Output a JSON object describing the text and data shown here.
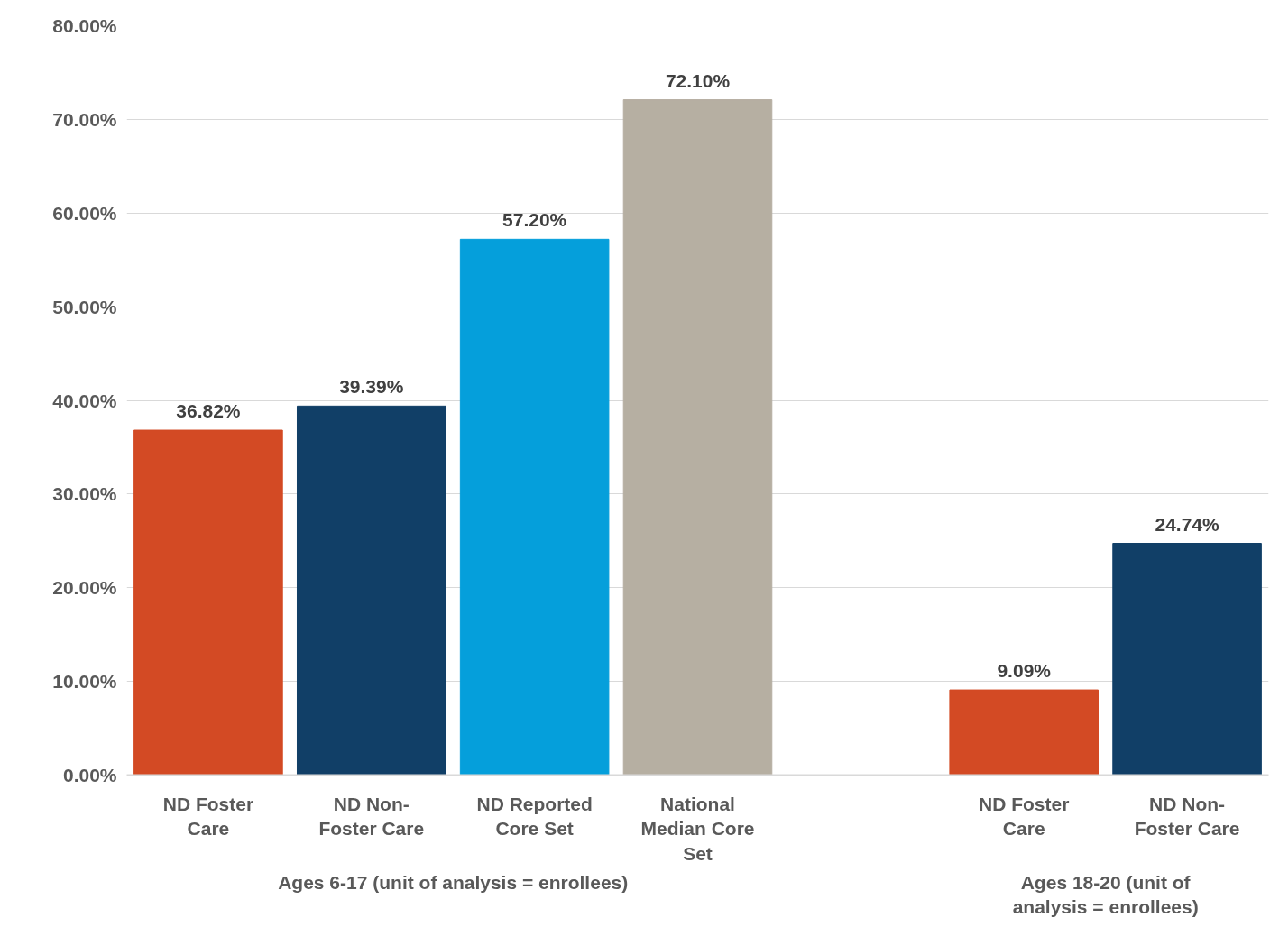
{
  "chart_data": {
    "type": "bar",
    "categories": [
      "ND Foster Care",
      "ND Non-Foster Care",
      "ND Reported Core Set",
      "National Median Core Set",
      null,
      "ND Foster Care",
      "ND Non-Foster Care"
    ],
    "values": [
      36.82,
      39.39,
      57.2,
      72.1,
      null,
      9.09,
      24.74
    ],
    "colors": [
      "#d34a24",
      "#113f67",
      "#059fdb",
      "#b6afa2",
      null,
      "#d34a24",
      "#113f67"
    ],
    "value_labels": [
      "36.82%",
      "39.39%",
      "57.20%",
      "72.10%",
      null,
      "9.09%",
      "24.74%"
    ],
    "ylim": [
      0,
      80
    ],
    "yticks": [
      {
        "value": 0,
        "label": "0.00%"
      },
      {
        "value": 10,
        "label": "10.00%"
      },
      {
        "value": 20,
        "label": "20.00%"
      },
      {
        "value": 30,
        "label": "30.00%"
      },
      {
        "value": 40,
        "label": "40.00%"
      },
      {
        "value": 50,
        "label": "50.00%"
      },
      {
        "value": 60,
        "label": "60.00%"
      },
      {
        "value": 70,
        "label": "70.00%"
      },
      {
        "value": 80,
        "label": "80.00%"
      }
    ],
    "grid": "y",
    "annotations": [
      "Ages 6-17 (unit of analysis = enrollees)",
      "Ages 18-20 (unit of analysis = enrollees)"
    ]
  }
}
